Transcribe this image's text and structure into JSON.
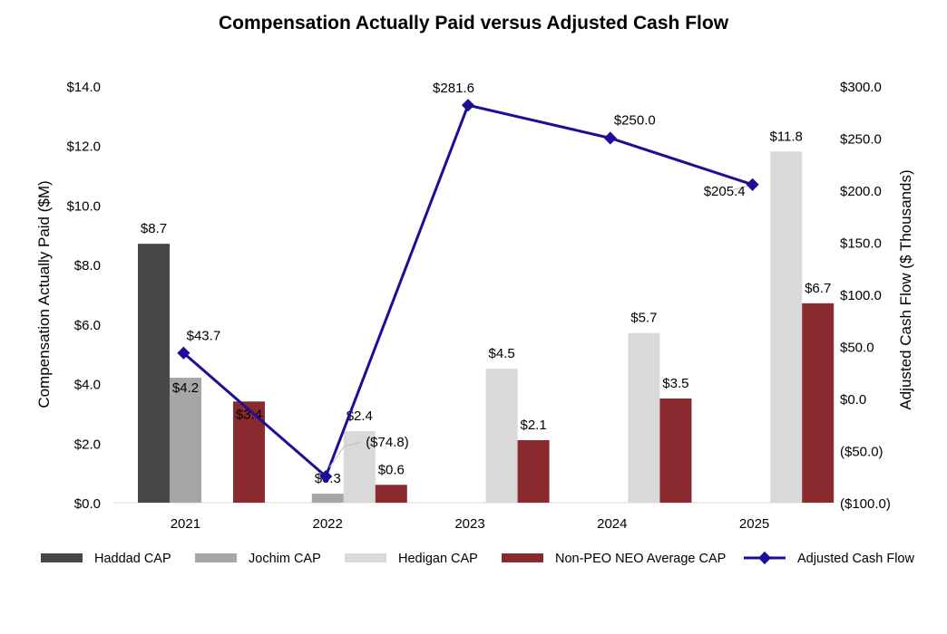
{
  "chart_data": {
    "type": "bar",
    "title": "Compensation Actually Paid versus Adjusted Cash Flow",
    "categories": [
      "2021",
      "2022",
      "2023",
      "2024",
      "2025"
    ],
    "ylabel": "Compensation Actually Paid ($M)",
    "y2label": "Adjusted Cash Flow ($ Thousands)",
    "ylim": [
      0,
      14
    ],
    "y2lim": [
      -100,
      300
    ],
    "yticks": [
      {
        "value": 0,
        "label": "$0.0"
      },
      {
        "value": 2,
        "label": "$2.0"
      },
      {
        "value": 4,
        "label": "$4.0"
      },
      {
        "value": 6,
        "label": "$6.0"
      },
      {
        "value": 8,
        "label": "$8.0"
      },
      {
        "value": 10,
        "label": "$10.0"
      },
      {
        "value": 12,
        "label": "$12.0"
      },
      {
        "value": 14,
        "label": "$14.0"
      }
    ],
    "y2ticks": [
      {
        "value": -100,
        "label": "($100.0)"
      },
      {
        "value": -50,
        "label": "($50.0)"
      },
      {
        "value": 0,
        "label": "$0.0"
      },
      {
        "value": 50,
        "label": "$50.0"
      },
      {
        "value": 100,
        "label": "$100.0"
      },
      {
        "value": 150,
        "label": "$150.0"
      },
      {
        "value": 200,
        "label": "$200.0"
      },
      {
        "value": 250,
        "label": "$250.0"
      },
      {
        "value": 300,
        "label": "$300.0"
      }
    ],
    "series": [
      {
        "name": "Haddad CAP",
        "type": "bar",
        "color": "#474747",
        "values": [
          8.7,
          null,
          null,
          null,
          null
        ],
        "labels": [
          "$8.7",
          null,
          null,
          null,
          null
        ]
      },
      {
        "name": "Jochim CAP",
        "type": "bar",
        "color": "#a6a6a6",
        "values": [
          4.2,
          0.3,
          null,
          null,
          null
        ],
        "labels": [
          "$4.2",
          "$0.3",
          null,
          null,
          null
        ]
      },
      {
        "name": "Hedigan CAP",
        "type": "bar",
        "color": "#d9d9d9",
        "values": [
          null,
          2.4,
          4.5,
          5.7,
          11.8
        ],
        "labels": [
          null,
          "$2.4",
          "$4.5",
          "$5.7",
          "$11.8"
        ]
      },
      {
        "name": "Non-PEO NEO Average CAP",
        "type": "bar",
        "color": "#8b2a2e",
        "values": [
          3.4,
          0.6,
          2.1,
          3.5,
          6.7
        ],
        "labels": [
          "$3.4",
          "$0.6",
          "$2.1",
          "$3.5",
          "$6.7"
        ]
      },
      {
        "name": "Adjusted Cash Flow",
        "type": "line",
        "axis": "secondary",
        "color": "#1e0e96",
        "values": [
          43.7,
          -74.8,
          281.6,
          250.0,
          205.4
        ],
        "labels": [
          "$43.7",
          "($74.8)",
          "$281.6",
          "$250.0",
          "$205.4"
        ]
      }
    ],
    "legend": "bottom",
    "grid": false
  }
}
